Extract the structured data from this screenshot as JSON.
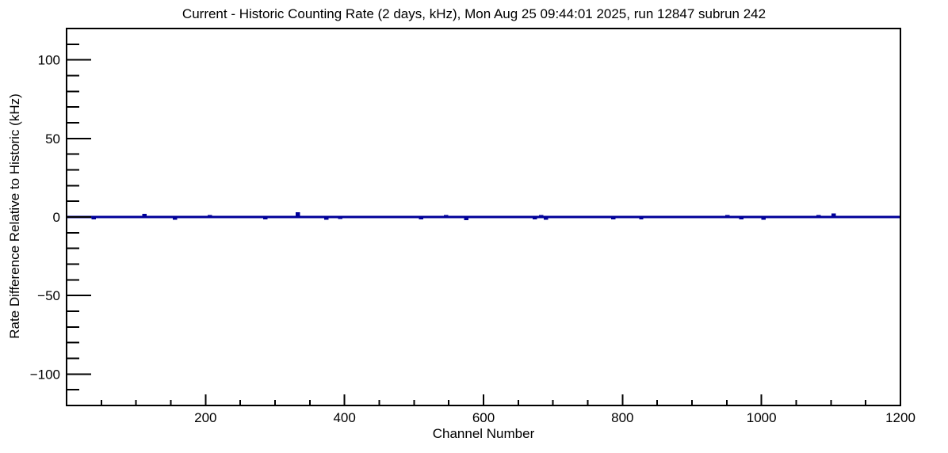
{
  "page": {
    "background_color": "#ffffff",
    "text_color": "#000000"
  },
  "chart_data": {
    "type": "line",
    "title": "Current - Historic Counting Rate (2 days, kHz), Mon Aug 25 09:44:01 2025, run 12847 subrun 242",
    "xlabel": "Channel Number",
    "ylabel": "Rate Difference Relative to Historic (kHz)",
    "xlim": [
      0,
      1200
    ],
    "ylim": [
      -120,
      120
    ],
    "x_major_ticks": [
      200,
      400,
      600,
      800,
      1000,
      1200
    ],
    "x_minor_step": 50,
    "y_major_ticks": [
      -100,
      -50,
      0,
      50,
      100
    ],
    "y_minor_step": 10,
    "grid": false,
    "legend": false,
    "axis_color": "#000000",
    "series": [
      {
        "name": "current-minus-historic-rate",
        "color": "#000099",
        "baseline": 0,
        "spikes": [
          {
            "channel": 39,
            "value": -0.8
          },
          {
            "channel": 112,
            "value": 1.3
          },
          {
            "channel": 156,
            "value": -1.0
          },
          {
            "channel": 206,
            "value": 0.5
          },
          {
            "channel": 286,
            "value": -0.8
          },
          {
            "channel": 333,
            "value": 2.3
          },
          {
            "channel": 374,
            "value": -1.0
          },
          {
            "channel": 394,
            "value": -0.6
          },
          {
            "channel": 510,
            "value": -0.7
          },
          {
            "channel": 546,
            "value": 0.5
          },
          {
            "channel": 575,
            "value": -1.2
          },
          {
            "channel": 674,
            "value": -0.8
          },
          {
            "channel": 683,
            "value": 0.6
          },
          {
            "channel": 690,
            "value": -0.9
          },
          {
            "channel": 787,
            "value": -0.8
          },
          {
            "channel": 827,
            "value": -0.8
          },
          {
            "channel": 951,
            "value": 0.5
          },
          {
            "channel": 971,
            "value": -0.7
          },
          {
            "channel": 1003,
            "value": -1.0
          },
          {
            "channel": 1082,
            "value": 0.5
          },
          {
            "channel": 1104,
            "value": 1.5
          }
        ]
      }
    ]
  }
}
